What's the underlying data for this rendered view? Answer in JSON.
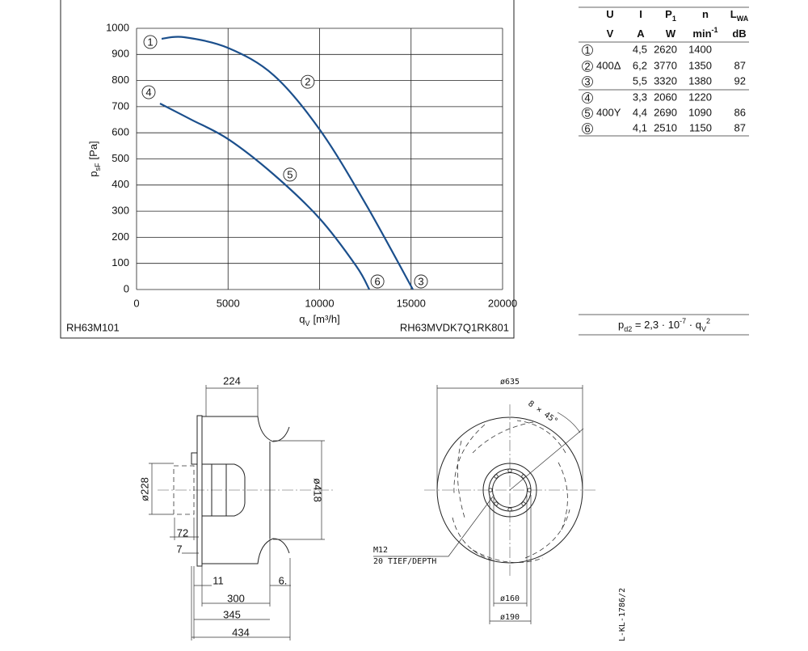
{
  "chart_data": {
    "type": "line",
    "xlabel": {
      "text": "q",
      "sub": "V",
      "unit": "[m³/h]"
    },
    "ylabel": {
      "text": "p",
      "sub": "sF",
      "unit": "[Pa]"
    },
    "notes": {
      "left": "RH63M101",
      "right": "RH63MVDK7Q1RK801"
    },
    "xlim": [
      0,
      20000
    ],
    "xticks": [
      0,
      5000,
      10000,
      15000,
      20000
    ],
    "ylim": [
      0,
      1000
    ],
    "yticks": [
      0,
      100,
      200,
      300,
      400,
      500,
      600,
      700,
      800,
      900,
      1000
    ],
    "grid": true,
    "series": [
      {
        "markers": [
          "1",
          "2",
          "3"
        ],
        "color": "#1b4f8c",
        "x": [
          1370,
          2600,
          5000,
          7500,
          10000,
          12500,
          15100
        ],
        "values": [
          960,
          966,
          925,
          820,
          613,
          330,
          0
        ]
      },
      {
        "markers": [
          "4",
          "5",
          "6"
        ],
        "color": "#1b4f8c",
        "x": [
          1280,
          3000,
          5000,
          7500,
          10000,
          12000,
          12720
        ],
        "values": [
          712,
          650,
          576,
          440,
          272,
          90,
          0
        ]
      }
    ]
  },
  "table": {
    "header": [
      {
        "text": "U"
      },
      {
        "text": "I"
      },
      {
        "text": "P",
        "sub": "1"
      },
      {
        "text": "n"
      },
      {
        "text": "L",
        "sub": "WA"
      }
    ],
    "units": [
      {
        "text": "V"
      },
      {
        "text": "A"
      },
      {
        "text": "W"
      },
      {
        "text": "min",
        "sup": "-1"
      },
      {
        "text": "dB"
      }
    ],
    "rows": [
      {
        "id": "1",
        "cells": [
          null,
          "4,5",
          "2620",
          "1400",
          null
        ]
      },
      {
        "id": "2",
        "cells": [
          "400Δ",
          "6,2",
          "3770",
          "1350",
          "87"
        ]
      },
      {
        "id": "3",
        "cells": [
          null,
          "5,5",
          "3320",
          "1380",
          "92"
        ]
      },
      {
        "id": "4",
        "cells": [
          null,
          "3,3",
          "2060",
          "1220",
          null
        ]
      },
      {
        "id": "5",
        "cells": [
          "400Y",
          "4,4",
          "2690",
          "1090",
          "86"
        ]
      },
      {
        "id": "6",
        "cells": [
          null,
          "4,1",
          "2510",
          "1150",
          "87"
        ]
      }
    ]
  },
  "formula": [
    {
      "text": "p"
    },
    {
      "text": "d2",
      "shift": "sub"
    },
    {
      "text": " = 2,3 · 10"
    },
    {
      "text": "-7",
      "shift": "sup"
    },
    {
      "text": " · q"
    },
    {
      "text": "V",
      "shift": "sub"
    },
    {
      "text": "2",
      "shift": "sup"
    }
  ],
  "drawing": {
    "d224": "224",
    "d228": "ø228",
    "d72": "72",
    "d7": "7",
    "d11": "11",
    "d6": "6.",
    "d300": "300",
    "d345": "345",
    "d434": "434",
    "d418": "ø418",
    "d635": "ø635",
    "angle": "8 × 45°",
    "thread": "M12",
    "depth": "20 TIEF/DEPTH",
    "d160": "ø160",
    "d190": "ø190",
    "ref": "L-KL-1786/2"
  }
}
